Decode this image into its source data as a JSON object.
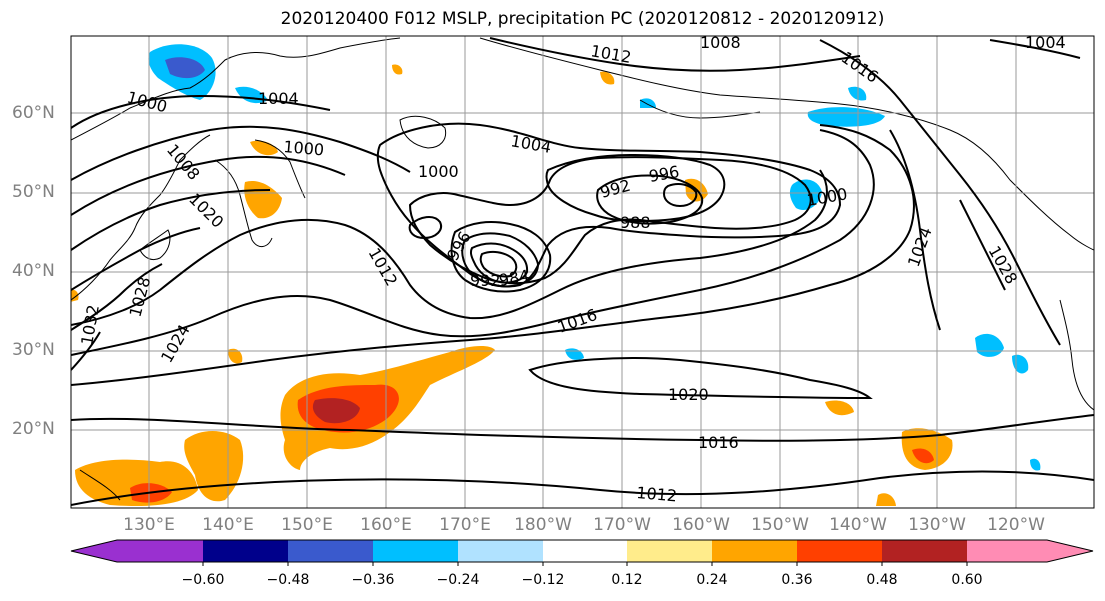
{
  "title": "2020120400 F012 MSLP, precipitation PC (2020120812 - 2020120912)",
  "lat_labels": [
    "60°N",
    "50°N",
    "40°N",
    "30°N",
    "20°N"
  ],
  "lon_labels": [
    "130°E",
    "140°E",
    "150°E",
    "160°E",
    "170°E",
    "180°W",
    "170°W",
    "160°W",
    "150°W",
    "140°W",
    "130°W",
    "120°W"
  ],
  "contour_labels": [
    {
      "text": "1012",
      "angle": 10
    },
    {
      "text": "1008",
      "angle": 0
    },
    {
      "text": "1004",
      "angle": 0
    },
    {
      "text": "1016",
      "angle": 35
    },
    {
      "text": "1000",
      "angle": 15
    },
    {
      "text": "1004",
      "angle": 0
    },
    {
      "text": "1008",
      "angle": 50
    },
    {
      "text": "1000",
      "angle": 5
    },
    {
      "text": "1020",
      "angle": 45
    },
    {
      "text": "1000",
      "angle": 0
    },
    {
      "text": "1004",
      "angle": 10
    },
    {
      "text": "996",
      "angle": -10
    },
    {
      "text": "992",
      "angle": -15
    },
    {
      "text": "988",
      "angle": 0
    },
    {
      "text": "1000",
      "angle": -10
    },
    {
      "text": "996",
      "angle": -60
    },
    {
      "text": "1012",
      "angle": 60
    },
    {
      "text": "984",
      "angle": -10
    },
    {
      "text": "992",
      "angle": 0
    },
    {
      "text": "1024",
      "angle": -70
    },
    {
      "text": "1028",
      "angle": 60
    },
    {
      "text": "1016",
      "angle": -20
    },
    {
      "text": "1020",
      "angle": 0
    },
    {
      "text": "1016",
      "angle": 0
    },
    {
      "text": "1012",
      "angle": 5
    },
    {
      "text": "1028",
      "angle": -75
    },
    {
      "text": "1024",
      "angle": -60
    },
    {
      "text": "1032",
      "angle": -80
    }
  ],
  "colorbar": {
    "ticks": [
      "−0.60",
      "−0.48",
      "−0.36",
      "−0.24",
      "−0.12",
      "0.12",
      "0.24",
      "0.36",
      "0.48",
      "0.60"
    ],
    "colors": [
      "#9a30d0",
      "#00008b",
      "#3a5acd",
      "#00bfff",
      "#b0e2ff",
      "#ffffff",
      "#ffec8b",
      "#ffa500",
      "#ff4000",
      "#b22222",
      "#ff8cb4"
    ]
  }
}
